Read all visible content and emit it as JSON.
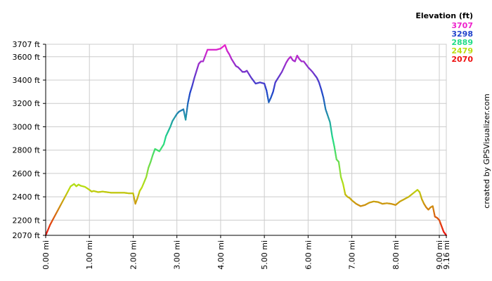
{
  "chart_data": {
    "type": "line",
    "legend": {
      "title": "Elevation (ft)",
      "entries": [
        {
          "label": "3707",
          "color": "#ee22cc"
        },
        {
          "label": "3298",
          "color": "#2244cc"
        },
        {
          "label": "2889",
          "color": "#22dd88"
        },
        {
          "label": "2479",
          "color": "#bbdd11"
        },
        {
          "label": "2070",
          "color": "#ee1111"
        }
      ]
    },
    "credit": "created by GPSVisualizer.com",
    "xlim": [
      0,
      9.16
    ],
    "ylim": [
      2070,
      3707
    ],
    "x_ticks": [
      {
        "value": 0,
        "label": "0.00 mi"
      },
      {
        "value": 1,
        "label": "1.00 mi"
      },
      {
        "value": 2,
        "label": "2.00 mi"
      },
      {
        "value": 3,
        "label": "3.00 mi"
      },
      {
        "value": 4,
        "label": "4.00 mi"
      },
      {
        "value": 5,
        "label": "5.00 mi"
      },
      {
        "value": 6,
        "label": "6.00 mi"
      },
      {
        "value": 7,
        "label": "7.00 mi"
      },
      {
        "value": 8,
        "label": "8.00 mi"
      },
      {
        "value": 9,
        "label": "9.00 mi"
      },
      {
        "value": 9.16,
        "label": "9.16 mi"
      }
    ],
    "y_ticks": [
      {
        "value": 2070,
        "label": "2070 ft"
      },
      {
        "value": 2200,
        "label": "2200 ft"
      },
      {
        "value": 2400,
        "label": "2400 ft"
      },
      {
        "value": 2600,
        "label": "2600 ft"
      },
      {
        "value": 2800,
        "label": "2800 ft"
      },
      {
        "value": 3000,
        "label": "3000 ft"
      },
      {
        "value": 3200,
        "label": "3200 ft"
      },
      {
        "value": 3400,
        "label": "3400 ft"
      },
      {
        "value": 3600,
        "label": "3600 ft"
      },
      {
        "value": 3707,
        "label": "3707 ft"
      }
    ],
    "grid": true,
    "series": [
      {
        "x": [
          0.0,
          0.1,
          0.2,
          0.3,
          0.4,
          0.5,
          0.57,
          0.65,
          0.7,
          0.75,
          0.8,
          0.9,
          1.0,
          1.05,
          1.1,
          1.2,
          1.3,
          1.4,
          1.5,
          1.6,
          1.7,
          1.8,
          1.9,
          2.0,
          2.05,
          2.1,
          2.15,
          2.2,
          2.3,
          2.35,
          2.4,
          2.45,
          2.5,
          2.55,
          2.6,
          2.7,
          2.75,
          2.8,
          2.85,
          2.9,
          3.0,
          3.05,
          3.1,
          3.15,
          3.2,
          3.25,
          3.3,
          3.35,
          3.4,
          3.45,
          3.5,
          3.55,
          3.6,
          3.7,
          3.8,
          3.9,
          4.0,
          4.1,
          4.15,
          4.2,
          4.25,
          4.3,
          4.35,
          4.4,
          4.5,
          4.55,
          4.6,
          4.7,
          4.8,
          4.9,
          5.0,
          5.05,
          5.1,
          5.15,
          5.2,
          5.25,
          5.3,
          5.4,
          5.5,
          5.55,
          5.6,
          5.65,
          5.7,
          5.75,
          5.8,
          5.85,
          5.9,
          6.0,
          6.1,
          6.2,
          6.25,
          6.3,
          6.35,
          6.4,
          6.5,
          6.55,
          6.6,
          6.65,
          6.7,
          6.75,
          6.8,
          6.85,
          6.9,
          6.95,
          7.0,
          7.1,
          7.2,
          7.3,
          7.4,
          7.5,
          7.6,
          7.7,
          7.8,
          7.9,
          8.0,
          8.1,
          8.2,
          8.3,
          8.4,
          8.5,
          8.55,
          8.6,
          8.65,
          8.7,
          8.75,
          8.8,
          8.85,
          8.9,
          8.95,
          9.0,
          9.05,
          9.1,
          9.16
        ],
        "y": [
          2070,
          2160,
          2230,
          2300,
          2370,
          2440,
          2490,
          2510,
          2490,
          2505,
          2495,
          2485,
          2460,
          2445,
          2450,
          2440,
          2445,
          2440,
          2435,
          2435,
          2435,
          2435,
          2430,
          2430,
          2340,
          2390,
          2450,
          2480,
          2570,
          2650,
          2700,
          2760,
          2810,
          2800,
          2790,
          2850,
          2920,
          2960,
          3000,
          3050,
          3110,
          3130,
          3140,
          3150,
          3060,
          3200,
          3290,
          3350,
          3420,
          3480,
          3540,
          3560,
          3560,
          3660,
          3660,
          3660,
          3670,
          3700,
          3650,
          3620,
          3580,
          3550,
          3520,
          3510,
          3470,
          3470,
          3480,
          3420,
          3370,
          3380,
          3370,
          3310,
          3210,
          3250,
          3300,
          3380,
          3410,
          3470,
          3550,
          3580,
          3600,
          3570,
          3560,
          3610,
          3580,
          3560,
          3560,
          3510,
          3470,
          3420,
          3380,
          3320,
          3250,
          3150,
          3040,
          2920,
          2830,
          2720,
          2700,
          2570,
          2510,
          2420,
          2400,
          2390,
          2370,
          2340,
          2320,
          2330,
          2350,
          2360,
          2355,
          2340,
          2345,
          2340,
          2330,
          2360,
          2380,
          2400,
          2430,
          2460,
          2440,
          2380,
          2340,
          2310,
          2290,
          2310,
          2320,
          2230,
          2220,
          2200,
          2150,
          2100,
          2070
        ]
      }
    ]
  }
}
